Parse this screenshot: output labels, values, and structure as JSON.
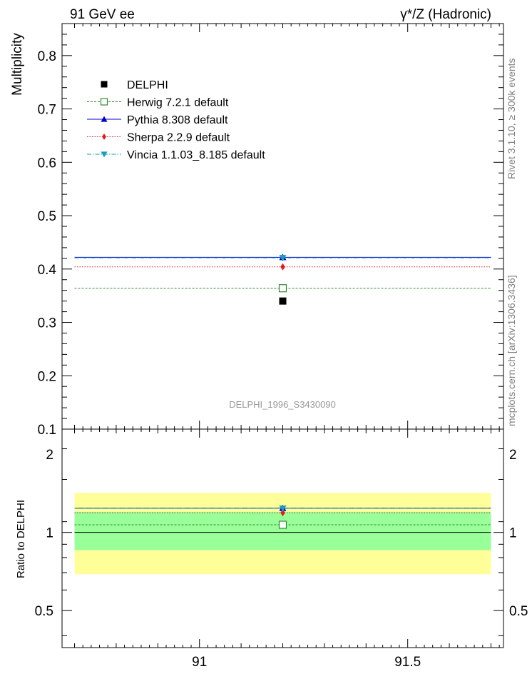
{
  "header": {
    "left": "91 GeV ee",
    "right": "γ*/Z (Hadronic)"
  },
  "side_text": {
    "rivet": "Rivet 3.1.10, ≥ 300k events",
    "mcplots": "mcplots.cern.ch [arXiv:1306.3436]"
  },
  "analysis_label": "DELPHI_1996_S3430090",
  "chart_data": [
    {
      "type": "scatter",
      "panel": "main",
      "ylabel": "Multiplicity",
      "xlim": [
        90.67,
        91.73
      ],
      "ylim": [
        0.1,
        0.86
      ],
      "y_ticks": [
        0.1,
        0.2,
        0.3,
        0.4,
        0.5,
        0.6,
        0.7,
        0.8
      ],
      "y_tick_labels": [
        "0.1",
        "0.2",
        "0.3",
        "0.4",
        "0.5",
        "0.6",
        "0.7",
        "0.8"
      ],
      "bin": [
        90.7,
        91.7
      ],
      "x_point": 91.2,
      "legend_position": "top-left",
      "series": [
        {
          "name": "DELPHI",
          "y": 0.34,
          "color": "#000000",
          "marker": "square-filled",
          "line": "none"
        },
        {
          "name": "Herwig 7.2.1 default",
          "y": 0.364,
          "color": "#338833",
          "marker": "square-open",
          "line": "dashed"
        },
        {
          "name": "Pythia 8.308 default",
          "y": 0.422,
          "color": "#0000cc",
          "marker": "triangle-up",
          "line": "solid"
        },
        {
          "name": "Sherpa 2.2.9 default",
          "y": 0.404,
          "color": "#e41a1c",
          "marker": "diamond",
          "line": "dotted"
        },
        {
          "name": "Vincia 1.1.03_8.185 default",
          "y": 0.421,
          "color": "#1a9bbf",
          "marker": "triangle-down",
          "line": "dashdot"
        }
      ]
    },
    {
      "type": "scatter",
      "panel": "ratio",
      "ylabel": "Ratio to DELPHI",
      "xlim": [
        90.67,
        91.73
      ],
      "ylim": [
        0.36,
        2.5
      ],
      "log_y": true,
      "x_ticks": [
        91,
        91.5
      ],
      "x_tick_labels": [
        "91",
        "91.5"
      ],
      "y_ticks": [
        0.5,
        1,
        2
      ],
      "y_tick_labels": [
        "0.5",
        "1",
        "2"
      ],
      "bands": [
        {
          "name": "yellow",
          "low": 0.69,
          "high": 1.42,
          "color": "#ffff99"
        },
        {
          "name": "green",
          "low": 0.855,
          "high": 1.2,
          "color": "#99ff99"
        }
      ],
      "series": [
        {
          "name": "DELPHI",
          "y": 1.0,
          "color": "#000000",
          "line": "solid"
        },
        {
          "name": "Herwig 7.2.1 default",
          "y": 1.07,
          "color": "#338833",
          "line": "dashed"
        },
        {
          "name": "Pythia 8.308 default",
          "y": 1.24,
          "color": "#0000cc",
          "line": "solid"
        },
        {
          "name": "Sherpa 2.2.9 default",
          "y": 1.19,
          "color": "#e41a1c",
          "line": "dotted"
        },
        {
          "name": "Vincia 1.1.03_8.185 default",
          "y": 1.238,
          "color": "#1a9bbf",
          "line": "dashdot"
        }
      ]
    }
  ]
}
